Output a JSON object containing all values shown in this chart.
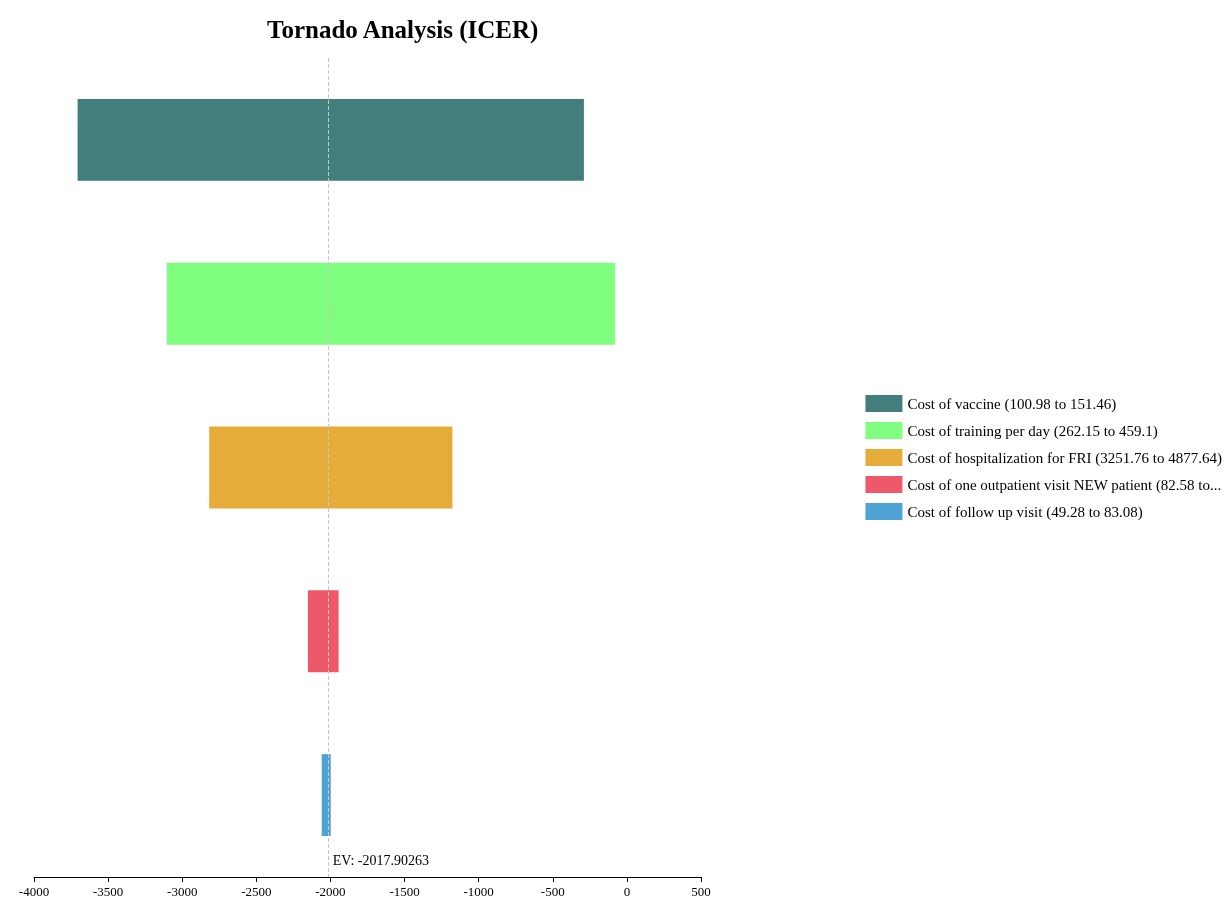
{
  "chart_data": {
    "type": "bar",
    "orientation": "horizontal",
    "title": "Tornado Analysis (ICER)",
    "categories": [
      null,
      null,
      null,
      null,
      null
    ],
    "series": [
      {
        "name": "Cost of vaccine (100.98 to 151.46)",
        "color": "#427f7c",
        "values": [
          3416,
          null,
          null,
          null,
          null
        ],
        "base": [
          -3706,
          null,
          null,
          null,
          null
        ]
      },
      {
        "name": "Cost of training per day (262.15 to 459.1)",
        "color": "#80fe80",
        "values": [
          null,
          3025,
          null,
          null,
          null
        ],
        "base": [
          null,
          -3104,
          null,
          null,
          null
        ]
      },
      {
        "name": "Cost of hospitalization for FRI (3251.76 to 4877.64)",
        "color": "#e5ac3a",
        "values": [
          null,
          null,
          1641,
          null,
          null
        ],
        "base": [
          null,
          null,
          -2818,
          null,
          null
        ]
      },
      {
        "name": "Cost of one outpatient visit NEW patient (82.58 to...",
        "color": "#ef5868",
        "values": [
          null,
          null,
          null,
          207,
          null
        ],
        "base": [
          null,
          null,
          null,
          -2152,
          null
        ]
      },
      {
        "name": "Cost of follow up visit (49.28 to 83.08)",
        "color": "#4fa2d4",
        "values": [
          null,
          null,
          null,
          null,
          61
        ],
        "base": [
          null,
          null,
          null,
          null,
          -2059
        ]
      }
    ],
    "xlim": [
      -4000,
      500
    ],
    "xticks": [
      -4000,
      -3500,
      -3000,
      -2500,
      -2000,
      -1500,
      -1000,
      -500,
      0,
      500
    ],
    "ref_lines": [
      {
        "axis": "x",
        "value": -2017.90263,
        "label": "EV: -2017.90263",
        "color": "#c8c8c8",
        "line_style": "dashed"
      }
    ],
    "legend": "right"
  }
}
